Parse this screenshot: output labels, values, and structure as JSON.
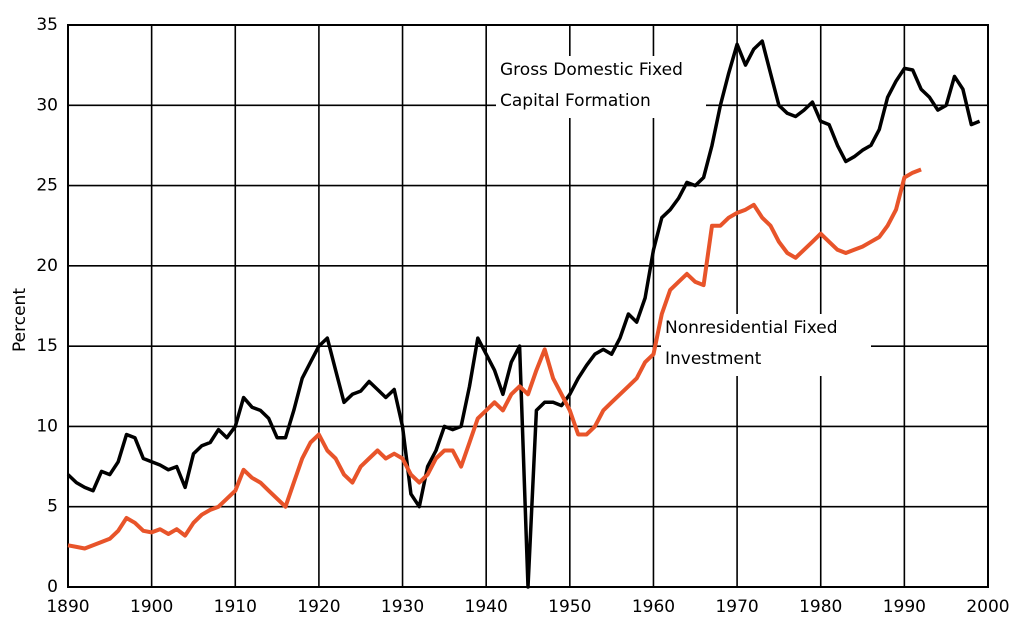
{
  "chart_data": {
    "type": "line",
    "ylabel": "Percent",
    "xlim": [
      1890,
      2000
    ],
    "xticks": [
      1890,
      1900,
      1910,
      1920,
      1930,
      1940,
      1950,
      1960,
      1970,
      1980,
      1990,
      2000
    ],
    "ylim": [
      0,
      35
    ],
    "yticks": [
      0,
      5,
      10,
      15,
      20,
      25,
      30,
      35
    ],
    "grid": true,
    "x": [
      1890,
      1891,
      1892,
      1893,
      1894,
      1895,
      1896,
      1897,
      1898,
      1899,
      1900,
      1901,
      1902,
      1903,
      1904,
      1905,
      1906,
      1907,
      1908,
      1909,
      1910,
      1911,
      1912,
      1913,
      1914,
      1915,
      1916,
      1917,
      1918,
      1919,
      1920,
      1921,
      1922,
      1923,
      1924,
      1925,
      1926,
      1927,
      1928,
      1929,
      1930,
      1931,
      1932,
      1933,
      1934,
      1935,
      1936,
      1937,
      1938,
      1939,
      1940,
      1941,
      1942,
      1943,
      1944,
      1945,
      1946,
      1947,
      1948,
      1949,
      1950,
      1951,
      1952,
      1953,
      1954,
      1955,
      1956,
      1957,
      1958,
      1959,
      1960,
      1961,
      1962,
      1963,
      1964,
      1965,
      1966,
      1967,
      1968,
      1969,
      1970,
      1971,
      1972,
      1973,
      1974,
      1975,
      1976,
      1977,
      1978,
      1979,
      1980,
      1981,
      1982,
      1983,
      1984,
      1985,
      1986,
      1987,
      1988,
      1989,
      1990,
      1991,
      1992,
      1993,
      1994,
      1995,
      1996,
      1997,
      1998,
      1999
    ],
    "series": [
      {
        "name": "Gross Domestic Fixed Capital Formation",
        "label_lines": [
          "Gross Domestic Fixed",
          "Capital Formation"
        ],
        "color": "#000000",
        "values": [
          7,
          6.5,
          6.2,
          6,
          7.2,
          7,
          7.8,
          9.5,
          9.3,
          8,
          7.8,
          7.6,
          7.3,
          7.5,
          6.2,
          8.3,
          8.8,
          9,
          9.8,
          9.3,
          10,
          11.8,
          11.2,
          11,
          10.5,
          9.3,
          9.3,
          11,
          13,
          14,
          15,
          15.5,
          13.5,
          11.5,
          12,
          12.2,
          12.8,
          12.3,
          11.8,
          12.3,
          10,
          5.8,
          5,
          7.5,
          8.5,
          10,
          9.8,
          10,
          12.5,
          15.5,
          14.5,
          13.5,
          12,
          14,
          15,
          0,
          11,
          11.5,
          11.5,
          11.3,
          12,
          13,
          13.8,
          14.5,
          14.8,
          14.5,
          15.5,
          17,
          16.5,
          18,
          21,
          23,
          23.5,
          24.2,
          25.2,
          25,
          25.5,
          27.5,
          30,
          32,
          33.8,
          32.5,
          33.5,
          34,
          32,
          30,
          29.5,
          29.3,
          29.7,
          30.2,
          29,
          28.8,
          27.5,
          26.5,
          26.8,
          27.2,
          27.5,
          28.5,
          30.5,
          31.5,
          32.3,
          32.2,
          31,
          30.5,
          29.7,
          30,
          31.8,
          31,
          28.8,
          29
        ]
      },
      {
        "name": "Nonresidential Fixed Investment",
        "label_lines": [
          "Nonresidential Fixed",
          "Investment"
        ],
        "color": "#e8542a",
        "values": [
          2.6,
          2.5,
          2.4,
          2.6,
          2.8,
          3,
          3.5,
          4.3,
          4,
          3.5,
          3.4,
          3.6,
          3.3,
          3.6,
          3.2,
          4,
          4.5,
          4.8,
          5,
          5.5,
          6,
          7.3,
          6.8,
          6.5,
          6,
          5.5,
          5,
          6.5,
          8,
          9,
          9.5,
          8.5,
          8,
          7,
          6.5,
          7.5,
          8,
          8.5,
          8,
          8.3,
          8,
          7,
          6.5,
          7,
          8,
          8.5,
          8.5,
          7.5,
          9,
          10.5,
          11,
          11.5,
          11,
          12,
          12.5,
          12,
          13.5,
          14.8,
          13,
          12,
          11,
          9.5,
          9.5,
          10,
          11,
          11.5,
          12,
          12.5,
          13,
          14,
          14.5,
          17,
          18.5,
          19,
          19.5,
          19,
          18.8,
          22.5,
          22.5,
          23,
          23.3,
          23.5,
          23.8,
          23,
          22.5,
          21.5,
          20.8,
          20.5,
          21,
          21.5,
          22,
          21.5,
          21,
          20.8,
          21,
          21.2,
          21.5,
          21.8,
          22.5,
          23.5,
          25.5,
          25.8,
          26,
          null,
          null,
          null,
          null,
          null,
          null,
          null
        ]
      }
    ]
  }
}
